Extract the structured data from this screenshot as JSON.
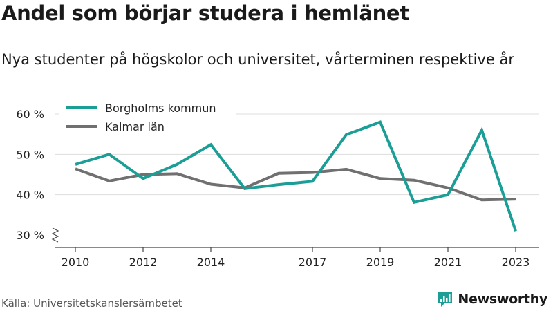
{
  "header": {
    "title": "Andel som börjar studera i hemlänet",
    "subtitle": "Nya studenter på högskolor och universitet, vårterminen respektive år"
  },
  "footer": {
    "source": "Källa: Universitetskanslersämbetet",
    "brand": "Newsworthy"
  },
  "colors": {
    "borgholm": "#1a9e96",
    "kalmar": "#707070",
    "brand": "#1a9e96"
  },
  "chart_data": {
    "type": "line",
    "x": [
      2010,
      2011,
      2012,
      2013,
      2014,
      2015,
      2016,
      2017,
      2018,
      2019,
      2020,
      2021,
      2022,
      2023
    ],
    "x_tick_labels": [
      "2010",
      "2012",
      "2014",
      "2017",
      "2019",
      "2021",
      "2023"
    ],
    "x_tick_values": [
      2010,
      2012,
      2014,
      2017,
      2019,
      2021,
      2023
    ],
    "y_tick_labels": [
      "30 %",
      "40 %",
      "50 %",
      "60 %"
    ],
    "y_tick_values": [
      30,
      40,
      50,
      60
    ],
    "ylim": [
      30,
      60
    ],
    "grid": true,
    "legend": "top-left",
    "series": [
      {
        "name": "Borgholms kommun",
        "color": "#1a9e96",
        "values": [
          47.5,
          50.0,
          44.0,
          47.5,
          52.4,
          41.5,
          42.5,
          43.3,
          54.9,
          58.0,
          38.1,
          40.0,
          56.0,
          31.0
        ]
      },
      {
        "name": "Kalmar län",
        "color": "#707070",
        "values": [
          46.4,
          43.4,
          45.0,
          45.2,
          42.6,
          41.7,
          45.3,
          45.5,
          46.3,
          44.0,
          43.6,
          41.7,
          38.7,
          38.9
        ]
      }
    ]
  }
}
